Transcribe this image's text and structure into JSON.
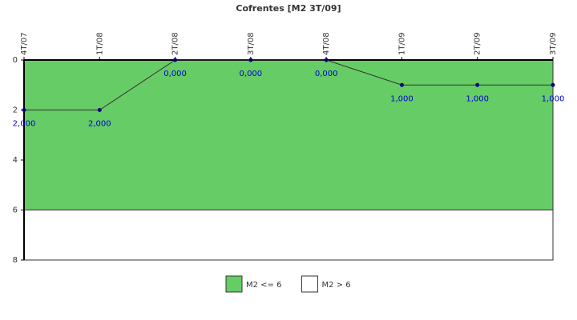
{
  "chart_data": {
    "type": "line",
    "title": "Cofrentes [M2 3T/09]",
    "categories": [
      "4T/07",
      "1T/08",
      "2T/08",
      "3T/08",
      "4T/08",
      "1T/09",
      "2T/09",
      "3T/09"
    ],
    "series": [
      {
        "name": "M2",
        "color": "#000080",
        "values": [
          2,
          2,
          0,
          0,
          0,
          1,
          1,
          1
        ],
        "value_labels": [
          "2,000",
          "2,000",
          "0,000",
          "0,000",
          "0,000",
          "1,000",
          "1,000",
          "1,000"
        ]
      }
    ],
    "ylim": [
      0,
      8
    ],
    "yticks": [
      0,
      2,
      4,
      6,
      8
    ],
    "y_inverted": true,
    "bands": [
      {
        "name": "M2 <= 6",
        "color": "#66cc66",
        "range": [
          0,
          6
        ]
      },
      {
        "name": "M2 > 6",
        "color": "#ffffff",
        "range": [
          6,
          8
        ]
      }
    ]
  }
}
